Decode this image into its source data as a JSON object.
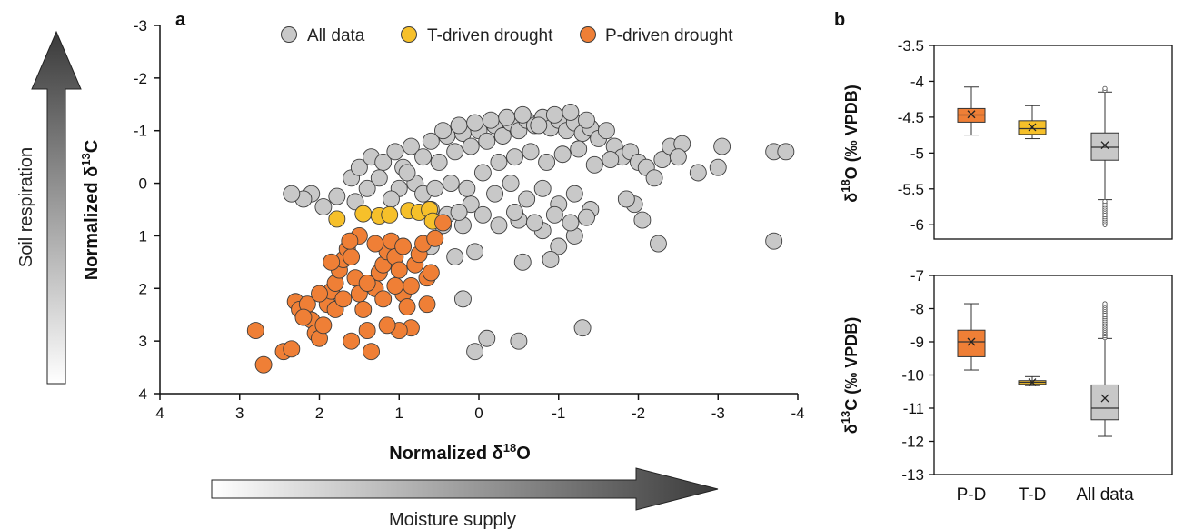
{
  "panel_a": {
    "letter": "a",
    "ylabel": {
      "pre": "Normalized δ",
      "sup": "13",
      "post": "C"
    },
    "xlabel": {
      "pre": "Normalized δ",
      "sup": "18",
      "post": "O"
    },
    "side_label_vertical": "Soil respiration",
    "side_label_horizontal": "Moisture supply"
  },
  "panel_b": {
    "letter": "b",
    "top_ylabel": {
      "pre": "δ",
      "sup": "18",
      "post": "O (‰ VPDB)"
    },
    "bottom_ylabel": {
      "pre": "δ",
      "sup": "13",
      "post": "C (‰ VPDB)"
    }
  },
  "colors": {
    "all_data": "#c8c8c8",
    "t_driven": "#f6c02a",
    "p_driven": "#ef7f36",
    "outline": "#3c3c3c"
  },
  "chart_data": [
    {
      "type": "scatter",
      "panel": "a",
      "xlabel": "Normalized δ18O",
      "ylabel": "Normalized δ13C",
      "xlim": [
        4,
        -4
      ],
      "ylim": [
        4,
        -3
      ],
      "x_reversed": true,
      "y_reversed": true,
      "x_ticks": [
        4,
        3,
        2,
        1,
        0,
        -1,
        -2,
        -3,
        -4
      ],
      "y_ticks": [
        -3,
        -2,
        -1,
        0,
        1,
        2,
        3,
        4
      ],
      "legend_position": "top",
      "series": [
        {
          "name": "All data",
          "points": [
            [
              1.78,
              0.25
            ],
            [
              1.55,
              0.35
            ],
            [
              1.6,
              -0.1
            ],
            [
              1.5,
              -0.3
            ],
            [
              1.35,
              -0.5
            ],
            [
              1.2,
              -0.4
            ],
            [
              1.05,
              -0.6
            ],
            [
              0.95,
              -0.3
            ],
            [
              0.85,
              -0.7
            ],
            [
              0.7,
              -0.5
            ],
            [
              0.6,
              -0.8
            ],
            [
              0.5,
              -0.4
            ],
            [
              0.4,
              -0.9
            ],
            [
              0.3,
              -0.6
            ],
            [
              0.2,
              -0.95
            ],
            [
              0.1,
              -0.7
            ],
            [
              0.0,
              -1.0
            ],
            [
              -0.1,
              -0.8
            ],
            [
              -0.2,
              -1.1
            ],
            [
              -0.3,
              -0.9
            ],
            [
              -0.4,
              -1.15
            ],
            [
              -0.5,
              -1.0
            ],
            [
              -0.6,
              -1.2
            ],
            [
              -0.7,
              -1.1
            ],
            [
              -0.8,
              -1.25
            ],
            [
              -0.9,
              -1.05
            ],
            [
              -1.0,
              -1.2
            ],
            [
              -1.1,
              -1.0
            ],
            [
              -1.2,
              -1.15
            ],
            [
              -1.3,
              -0.95
            ],
            [
              -1.4,
              -1.05
            ],
            [
              -1.5,
              -0.85
            ],
            [
              -1.6,
              -1.0
            ],
            [
              -1.7,
              -0.7
            ],
            [
              -1.8,
              -0.5
            ],
            [
              -1.9,
              -0.6
            ],
            [
              -2.0,
              -0.4
            ],
            [
              -2.1,
              -0.3
            ],
            [
              -2.2,
              -0.1
            ],
            [
              -2.3,
              -0.45
            ],
            [
              -2.4,
              -0.7
            ],
            [
              -2.55,
              -0.75
            ],
            [
              -2.5,
              -0.5
            ],
            [
              -2.75,
              -0.2
            ],
            [
              -3.0,
              -0.3
            ],
            [
              -3.05,
              -0.7
            ],
            [
              -3.7,
              -0.6
            ],
            [
              -3.85,
              -0.6
            ],
            [
              -3.7,
              1.1
            ],
            [
              -2.25,
              1.15
            ],
            [
              -2.05,
              0.7
            ],
            [
              -1.95,
              0.4
            ],
            [
              -1.85,
              0.3
            ],
            [
              0.05,
              1.3
            ],
            [
              0.2,
              0.8
            ],
            [
              0.4,
              0.6
            ],
            [
              0.1,
              0.4
            ],
            [
              -0.2,
              0.2
            ],
            [
              -0.4,
              0.0
            ],
            [
              -0.6,
              0.3
            ],
            [
              -0.8,
              0.1
            ],
            [
              -1.0,
              0.4
            ],
            [
              -1.2,
              0.2
            ],
            [
              -1.4,
              0.5
            ],
            [
              -0.5,
              0.7
            ],
            [
              -0.8,
              0.9
            ],
            [
              -1.0,
              1.2
            ],
            [
              -1.2,
              1.0
            ],
            [
              -0.9,
              1.45
            ],
            [
              -0.55,
              1.5
            ],
            [
              0.2,
              2.2
            ],
            [
              -0.1,
              2.95
            ],
            [
              -0.5,
              3.0
            ],
            [
              0.05,
              3.2
            ],
            [
              -1.3,
              2.75
            ],
            [
              0.6,
              1.2
            ],
            [
              0.3,
              1.4
            ],
            [
              0.8,
              0.0
            ],
            [
              0.9,
              -0.2
            ],
            [
              1.0,
              0.1
            ],
            [
              1.1,
              0.3
            ],
            [
              1.25,
              -0.1
            ],
            [
              1.4,
              0.1
            ],
            [
              2.1,
              0.2
            ],
            [
              2.2,
              0.3
            ],
            [
              2.35,
              0.2
            ],
            [
              1.95,
              0.45
            ],
            [
              0.7,
              0.2
            ],
            [
              0.55,
              0.1
            ],
            [
              0.35,
              0.0
            ],
            [
              0.15,
              0.1
            ],
            [
              -0.05,
              -0.2
            ],
            [
              -0.25,
              -0.4
            ],
            [
              -0.45,
              -0.5
            ],
            [
              -0.65,
              -0.6
            ],
            [
              -0.85,
              -0.4
            ],
            [
              -1.05,
              -0.55
            ],
            [
              -1.25,
              -0.65
            ],
            [
              -1.45,
              -0.35
            ],
            [
              -1.65,
              -0.45
            ],
            [
              0.45,
              -1.0
            ],
            [
              0.25,
              -1.1
            ],
            [
              0.05,
              -1.15
            ],
            [
              -0.15,
              -1.2
            ],
            [
              -0.35,
              -1.25
            ],
            [
              -0.55,
              -1.3
            ],
            [
              -0.75,
              -1.1
            ],
            [
              -0.95,
              -1.3
            ],
            [
              -1.15,
              -1.35
            ],
            [
              -1.35,
              -1.2
            ],
            [
              0.6,
              0.5
            ],
            [
              0.45,
              0.8
            ],
            [
              0.25,
              0.55
            ],
            [
              -0.05,
              0.6
            ],
            [
              -0.25,
              0.8
            ],
            [
              -0.45,
              0.55
            ],
            [
              -0.7,
              0.75
            ],
            [
              -0.95,
              0.6
            ],
            [
              -1.15,
              0.75
            ],
            [
              -1.35,
              0.65
            ]
          ]
        },
        {
          "name": "T-driven drought",
          "points": [
            [
              1.78,
              0.68
            ],
            [
              1.45,
              0.58
            ],
            [
              1.25,
              0.62
            ],
            [
              1.12,
              0.6
            ],
            [
              0.88,
              0.52
            ],
            [
              0.75,
              0.55
            ],
            [
              0.62,
              0.5
            ],
            [
              0.58,
              0.72
            ]
          ]
        },
        {
          "name": "P-driven drought",
          "points": [
            [
              2.8,
              2.8
            ],
            [
              2.7,
              3.45
            ],
            [
              2.45,
              3.2
            ],
            [
              2.35,
              3.15
            ],
            [
              2.3,
              2.25
            ],
            [
              2.25,
              2.4
            ],
            [
              2.15,
              2.3
            ],
            [
              2.1,
              2.6
            ],
            [
              2.05,
              2.85
            ],
            [
              2.0,
              2.95
            ],
            [
              1.95,
              2.7
            ],
            [
              1.9,
              2.3
            ],
            [
              1.85,
              2.05
            ],
            [
              1.8,
              1.9
            ],
            [
              1.75,
              1.65
            ],
            [
              1.7,
              1.45
            ],
            [
              1.65,
              1.25
            ],
            [
              1.6,
              1.4
            ],
            [
              1.55,
              1.8
            ],
            [
              1.5,
              2.1
            ],
            [
              1.45,
              2.4
            ],
            [
              1.4,
              2.8
            ],
            [
              1.35,
              3.2
            ],
            [
              1.3,
              2.0
            ],
            [
              1.25,
              1.7
            ],
            [
              1.2,
              1.55
            ],
            [
              1.15,
              1.3
            ],
            [
              1.1,
              1.1
            ],
            [
              1.05,
              1.4
            ],
            [
              1.0,
              1.65
            ],
            [
              0.95,
              2.1
            ],
            [
              0.9,
              2.35
            ],
            [
              0.85,
              1.95
            ],
            [
              0.8,
              1.55
            ],
            [
              0.75,
              1.35
            ],
            [
              0.7,
              1.15
            ],
            [
              0.65,
              1.8
            ],
            [
              0.6,
              1.7
            ],
            [
              0.55,
              1.05
            ],
            [
              0.65,
              2.3
            ],
            [
              0.85,
              2.75
            ],
            [
              1.0,
              2.8
            ],
            [
              1.15,
              2.7
            ],
            [
              1.6,
              3.0
            ],
            [
              1.8,
              2.4
            ],
            [
              2.0,
              2.1
            ],
            [
              1.7,
              2.2
            ],
            [
              1.4,
              1.9
            ],
            [
              1.2,
              2.2
            ],
            [
              1.05,
              1.95
            ],
            [
              0.95,
              1.2
            ],
            [
              1.3,
              1.15
            ],
            [
              1.5,
              1.0
            ],
            [
              1.62,
              1.1
            ],
            [
              1.85,
              1.5
            ],
            [
              2.2,
              2.55
            ],
            [
              0.45,
              0.75
            ]
          ]
        }
      ]
    },
    {
      "type": "box",
      "panel": "b-top",
      "ylabel": "δ18O (‰ VPDB)",
      "ylim": [
        -6.2,
        -3.5
      ],
      "y_ticks": [
        -3.5,
        -4.0,
        -4.5,
        -5.0,
        -5.5,
        -6.0
      ],
      "categories": [
        "P-D",
        "T-D",
        "All data"
      ],
      "boxes": [
        {
          "category": "P-D",
          "min": -4.75,
          "q1": -4.57,
          "median": -4.47,
          "q3": -4.38,
          "max": -4.08,
          "mean": -4.46
        },
        {
          "category": "T-D",
          "min": -4.8,
          "q1": -4.74,
          "median": -4.66,
          "q3": -4.55,
          "max": -4.34,
          "mean": -4.64
        },
        {
          "category": "All data",
          "min": -5.65,
          "q1": -5.1,
          "median": -4.92,
          "q3": -4.72,
          "max": -4.15,
          "mean": -4.89
        }
      ],
      "outliers_all_data_range": [
        -6.0,
        -4.1
      ]
    },
    {
      "type": "box",
      "panel": "b-bottom",
      "ylabel": "δ13C (‰ VPDB)",
      "ylim": [
        -13,
        -7
      ],
      "y_ticks": [
        -7,
        -8,
        -9,
        -10,
        -11,
        -12,
        -13
      ],
      "categories": [
        "P-D",
        "T-D",
        "All data"
      ],
      "boxes": [
        {
          "category": "P-D",
          "min": -9.85,
          "q1": -9.45,
          "median": -9.0,
          "q3": -8.65,
          "max": -7.85,
          "mean": -9.0
        },
        {
          "category": "T-D",
          "min": -10.32,
          "q1": -10.28,
          "median": -10.22,
          "q3": -10.17,
          "max": -10.05,
          "mean": -10.22
        },
        {
          "category": "All data",
          "min": -11.85,
          "q1": -11.35,
          "median": -11.0,
          "q3": -10.3,
          "max": -8.9,
          "mean": -10.7
        }
      ],
      "outliers_all_data_range": [
        -11.85,
        -7.85
      ]
    }
  ]
}
